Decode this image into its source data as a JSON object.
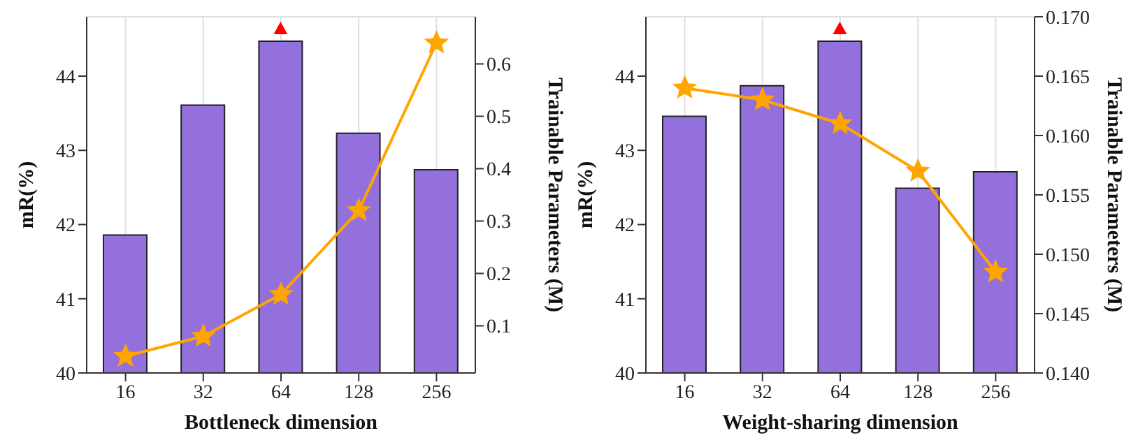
{
  "chart_data": [
    {
      "type": "bar",
      "categories": [
        "16",
        "32",
        "64",
        "128",
        "256"
      ],
      "xlabel": "Bottleneck dimension",
      "ylabel": "mR(%)",
      "y2label": "Trainable Parameters (M)",
      "ylim": [
        40,
        44.8
      ],
      "yticks": [
        40,
        41,
        42,
        43,
        44
      ],
      "y2lim": [
        0.01,
        0.69
      ],
      "y2ticks": [
        0.1,
        0.2,
        0.3,
        0.4,
        0.5,
        0.6
      ],
      "grid": true,
      "marker": "star",
      "series": [
        {
          "color": "#9370db",
          "values": [
            41.86,
            43.61,
            44.47,
            43.23,
            42.74
          ]
        },
        {
          "type": "line",
          "axis": "y2",
          "color": "#ffa500",
          "values": [
            0.042,
            0.08,
            0.16,
            0.32,
            0.64
          ]
        }
      ]
    },
    {
      "type": "bar",
      "categories": [
        "16",
        "32",
        "64",
        "128",
        "256"
      ],
      "xlabel": "Weight-sharing dimension",
      "ylabel": "mR(%)",
      "y2label": "Trainable Parameters (M)",
      "ylim": [
        40,
        44.8
      ],
      "yticks": [
        40,
        41,
        42,
        43,
        44
      ],
      "y2lim": [
        0.14,
        0.17
      ],
      "y2ticks": [
        {
          "value": 0.14,
          "label": "0.140"
        },
        {
          "value": 0.145,
          "label": "0.145"
        },
        {
          "value": 0.15,
          "label": "0.150"
        },
        {
          "value": 0.155,
          "label": "0.155"
        },
        {
          "value": 0.16,
          "label": "0.160"
        },
        {
          "value": 0.165,
          "label": "0.165"
        },
        {
          "value": 0.17,
          "label": "0.170"
        }
      ],
      "grid": true,
      "marker": "star",
      "series": [
        {
          "color": "#9370db",
          "values": [
            43.46,
            43.87,
            44.47,
            42.49,
            42.71
          ]
        },
        {
          "type": "line",
          "axis": "y2",
          "color": "#ffa500",
          "values": [
            0.164,
            0.163,
            0.161,
            0.157,
            0.1485
          ]
        }
      ]
    }
  ]
}
